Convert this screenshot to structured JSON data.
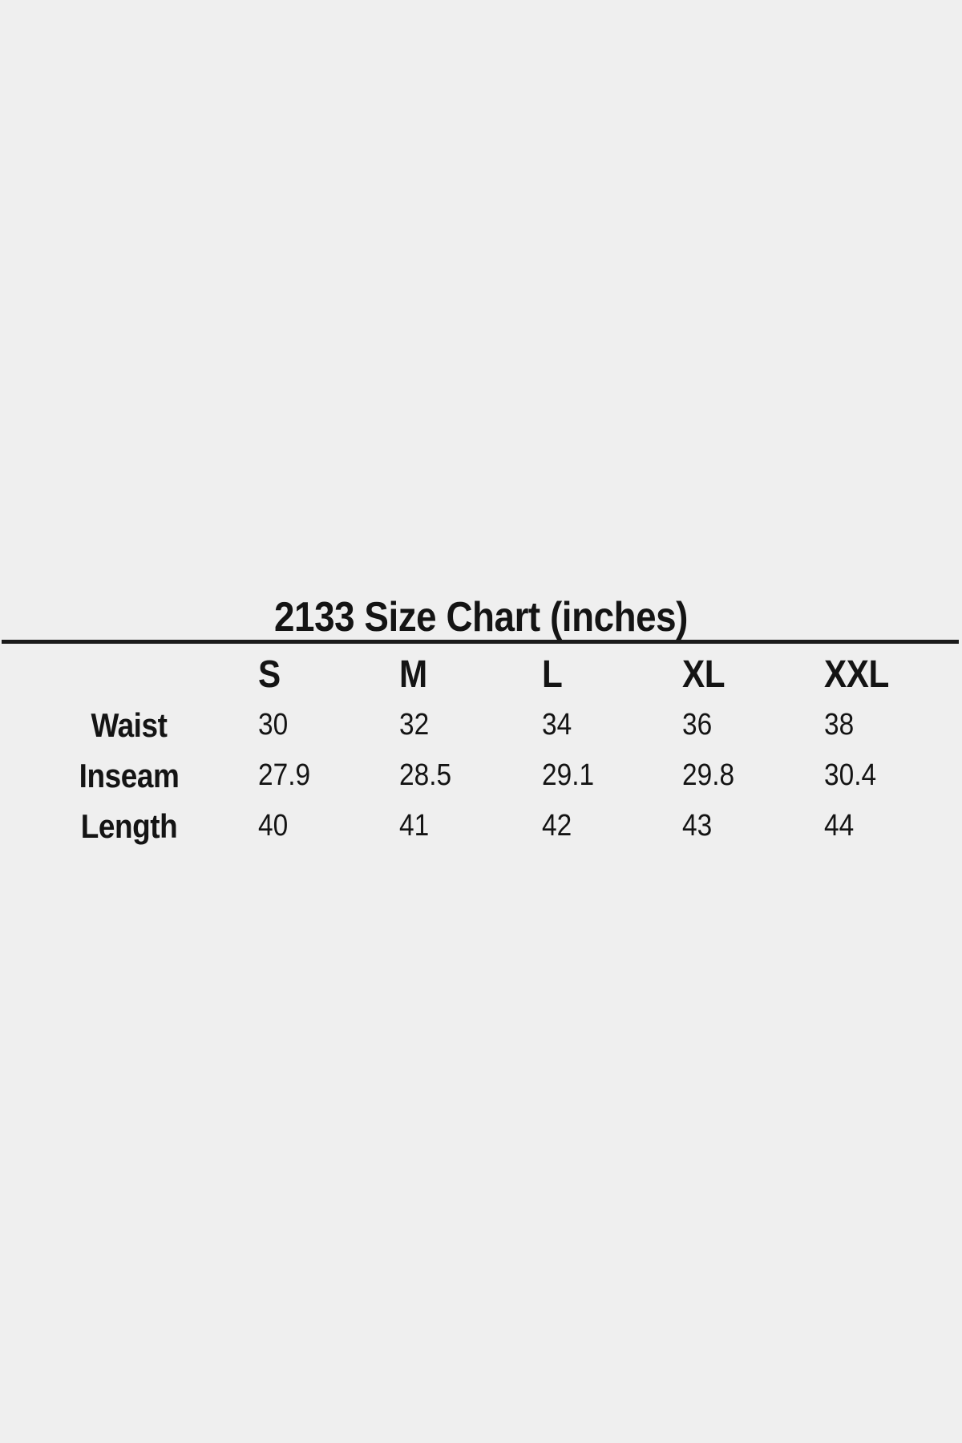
{
  "canvas": {
    "background_color": "#efefef",
    "text_color": "#141414",
    "divider_color": "#1a1a1a"
  },
  "chart_data": {
    "type": "table",
    "title": "2133 Size Chart (inches)",
    "columns": [
      "S",
      "M",
      "L",
      "XL",
      "XXL"
    ],
    "rows": [
      {
        "label": "Waist",
        "values": [
          "30",
          "32",
          "34",
          "36",
          "38"
        ]
      },
      {
        "label": "Inseam",
        "values": [
          "27.9",
          "28.5",
          "29.1",
          "29.8",
          "30.4"
        ]
      },
      {
        "label": "Length",
        "values": [
          "40",
          "41",
          "42",
          "43",
          "44"
        ]
      }
    ]
  }
}
